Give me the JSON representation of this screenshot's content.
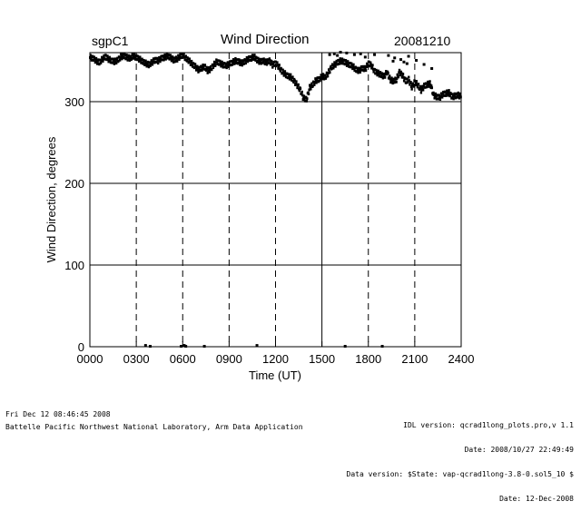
{
  "header": {
    "site": "sgpC1",
    "title": "Wind Direction",
    "date": "20081210"
  },
  "footer": {
    "left_line1": "Fri Dec 12 08:46:45 2008",
    "left_line2": "Battelle Pacific Northwest National Laboratory, Arm Data Application",
    "right_lines": [
      "IDL version: qcrad1long_plots.pro,v 1.1",
      "Date: 2008/10/27 22:49:49",
      "Data version: $State: vap-qcrad1long-3.8-0.sol5_10 $",
      "Date: 12-Dec-2008"
    ]
  },
  "chart_data": {
    "type": "scatter",
    "title": "Wind Direction",
    "xlabel": "Time (UT)",
    "ylabel": "Wind Direction, degrees",
    "xlim": [
      0,
      24
    ],
    "ylim": [
      0,
      360
    ],
    "x_ticks": [
      "0000",
      "0300",
      "0600",
      "0900",
      "1200",
      "1500",
      "1800",
      "2100",
      "2400"
    ],
    "y_ticks": [
      0,
      100,
      200,
      300
    ],
    "grid": {
      "horizontal_solid": [
        100,
        200,
        300
      ],
      "vertical_dashed": [
        3,
        6,
        9,
        12,
        18,
        21
      ],
      "vertical_solid": [
        15
      ]
    },
    "series": [
      {
        "x": [
          0.0,
          0.2,
          0.4,
          0.6,
          0.8,
          1.0,
          1.2,
          1.4,
          1.6,
          1.8,
          2.0,
          2.2,
          2.4,
          2.6,
          2.8,
          3.0,
          3.2,
          3.4,
          3.6,
          3.8,
          4.0,
          4.2,
          4.4,
          4.6,
          4.8,
          5.0,
          5.2,
          5.4,
          5.6,
          5.8,
          6.0,
          6.2,
          6.4,
          6.6,
          6.8,
          7.0,
          7.2,
          7.4,
          7.6,
          7.8,
          8.0,
          8.2,
          8.4,
          8.6,
          8.8,
          9.0,
          9.2,
          9.4,
          9.6,
          9.8,
          10.0,
          10.2,
          10.4,
          10.6,
          10.8,
          11.0,
          11.2,
          11.4,
          11.6,
          11.8,
          12.0,
          12.2,
          12.4,
          12.6,
          12.8,
          13.0,
          13.2,
          13.4,
          13.6,
          13.8,
          14.0,
          14.2,
          14.4,
          14.6,
          14.8,
          15.0,
          15.2,
          15.4,
          15.6,
          15.8,
          16.0,
          16.2,
          16.4,
          16.6,
          16.8,
          17.0,
          17.2,
          17.4,
          17.6,
          17.8,
          18.0,
          18.2,
          18.4,
          18.6,
          18.8,
          19.0,
          19.2,
          19.4,
          19.6,
          19.8,
          20.0,
          20.2,
          20.4,
          20.6,
          20.8,
          21.0,
          21.2,
          21.4,
          21.6,
          21.8,
          22.0,
          22.2,
          22.4,
          22.6,
          22.8,
          23.0,
          23.2,
          23.4,
          23.6,
          23.8,
          24.0
        ],
        "y": [
          354,
          353,
          350,
          348,
          352,
          355,
          352,
          350,
          349,
          351,
          355,
          356,
          354,
          353,
          356,
          354,
          352,
          349,
          347,
          345,
          348,
          351,
          350,
          353,
          354,
          356,
          354,
          351,
          352,
          355,
          357,
          353,
          350,
          346,
          343,
          339,
          341,
          343,
          338,
          340,
          345,
          349,
          347,
          345,
          344,
          346,
          348,
          350,
          349,
          347,
          349,
          352,
          353,
          355,
          351,
          349,
          350,
          348,
          350,
          345,
          347,
          343,
          337,
          334,
          331,
          330,
          325,
          320,
          314,
          304,
          303,
          317,
          321,
          326,
          327,
          331,
          330,
          335,
          342,
          345,
          348,
          350,
          349,
          347,
          345,
          343,
          339,
          338,
          341,
          340,
          347,
          344,
          337,
          335,
          333,
          331,
          336,
          327,
          325,
          327,
          336,
          332,
          325,
          327,
          318,
          324,
          320,
          314,
          319,
          321,
          322,
          308,
          306,
          305,
          309,
          310,
          311,
          306,
          307,
          308,
          306
        ]
      },
      {
        "name": "",
        "x": [
          3.6,
          3.9,
          5.9,
          6.1,
          6.2,
          7.4,
          10.8,
          16.5,
          18.9
        ],
        "y": [
          1,
          0,
          0,
          1,
          0,
          0,
          1,
          0,
          0
        ]
      },
      {
        "name": "",
        "x": [
          15.5,
          15.8,
          16.2,
          16.6,
          17.1,
          17.5,
          18.4,
          19.3,
          19.7,
          20.1,
          20.3,
          20.6,
          21.1,
          21.6,
          22.1,
          20.5,
          19.6,
          17.8,
          16.0
        ],
        "y": [
          357,
          358,
          360,
          359,
          357,
          358,
          357,
          356,
          353,
          351,
          348,
          355,
          350,
          345,
          340,
          346,
          349,
          354,
          356
        ]
      }
    ]
  }
}
